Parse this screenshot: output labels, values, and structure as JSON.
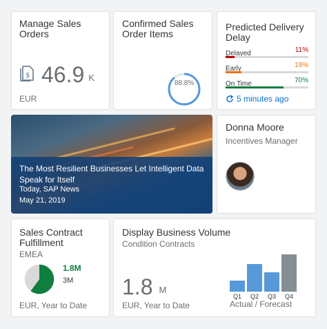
{
  "tiles": {
    "manage": {
      "title": "Manage Sales Orders",
      "value": "46.9",
      "scale": "K",
      "footer": "EUR",
      "icon": "sales-document-icon"
    },
    "confirmed": {
      "title": "Confirmed Sales Order Items",
      "percent_label": "88.8%",
      "percent": 88.8,
      "color": "#5899da"
    },
    "delivery": {
      "title": "Predicted Delivery Delay",
      "rows": [
        {
          "label": "Delayed",
          "percent": "11%",
          "value": 11,
          "color": "#bb0000"
        },
        {
          "label": "Early",
          "percent": "19%",
          "value": 19,
          "color": "#e9730c"
        },
        {
          "label": "On Time",
          "percent": "70%",
          "value": 70,
          "color": "#107e3e"
        }
      ],
      "refresh": "5 minutes ago"
    },
    "news": {
      "title": "The Most Resilient Businesses Let Intelligent Data Speak for Itself",
      "source": "Today, SAP News",
      "date": "May 21, 2019"
    },
    "person": {
      "name": "Donna Moore",
      "role": "Incentives Manager"
    },
    "contract": {
      "title": "Sales Contract Fulfillment",
      "subtitle": "EMEA",
      "value_primary": "1.8M",
      "value_secondary": "3M",
      "fraction": 0.6,
      "footer": "EUR, Year to Date"
    },
    "volume": {
      "title": "Display Business Volume",
      "subtitle": "Condition Contracts",
      "value": "1.8",
      "scale": "M",
      "footer": "EUR, Year to Date",
      "chart_caption": "Actual / Forecast"
    }
  },
  "chart_data": {
    "type": "bar",
    "categories": [
      "Q1",
      "Q2",
      "Q3",
      "Q4"
    ],
    "values": [
      1,
      2.6,
      1.8,
      3.5
    ],
    "colors": [
      "#5899da",
      "#5899da",
      "#5899da",
      "#848f94"
    ],
    "ylim": [
      0,
      3.6
    ]
  },
  "colors": {
    "accent": "#0a6ed1",
    "positive": "#107e3e",
    "neutral": "#6a6d70"
  }
}
